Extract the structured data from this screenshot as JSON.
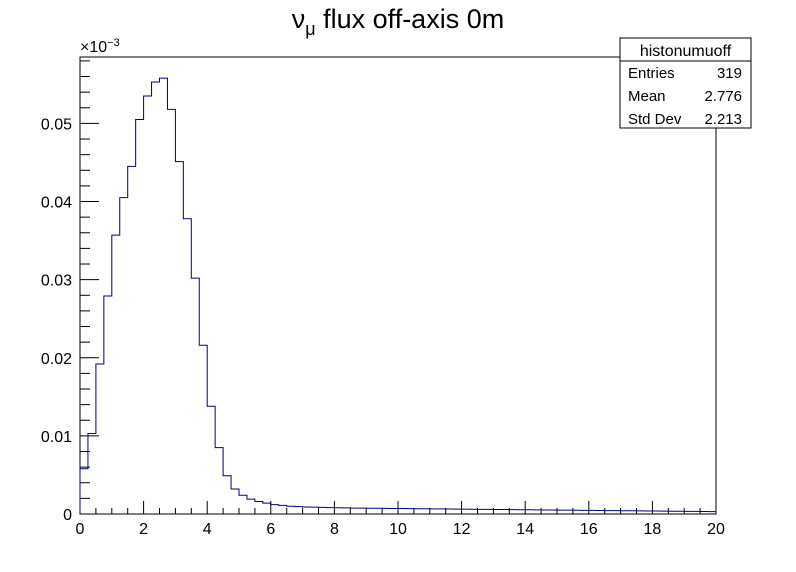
{
  "chart_data": {
    "type": "histogram",
    "title_main": "ν",
    "title_sub": "μ",
    "title_rest": " flux off-axis 0m",
    "xlim": [
      0,
      20
    ],
    "ylim": [
      0,
      0.0585
    ],
    "x_ticks": [
      0,
      2,
      4,
      6,
      8,
      10,
      12,
      14,
      16,
      18,
      20
    ],
    "x_tick_labels": [
      "0",
      "2",
      "4",
      "6",
      "8",
      "10",
      "12",
      "14",
      "16",
      "18",
      "20"
    ],
    "y_ticks": [
      0,
      0.01,
      0.02,
      0.03,
      0.04,
      0.05
    ],
    "y_tick_labels": [
      "0",
      "0.01",
      "0.02",
      "0.03",
      "0.04",
      "0.05"
    ],
    "y_multiplier_base": "×10",
    "y_multiplier_exp": "−3",
    "bin_width": 0.25,
    "values": [
      0.0058,
      0.0103,
      0.0192,
      0.0279,
      0.0357,
      0.0405,
      0.0445,
      0.0505,
      0.0535,
      0.0553,
      0.0558,
      0.0518,
      0.0451,
      0.0378,
      0.0302,
      0.0216,
      0.0138,
      0.0085,
      0.0049,
      0.0032,
      0.0024,
      0.0019,
      0.0016,
      0.0014,
      0.0012,
      0.0011,
      0.001,
      0.00095,
      0.0009,
      0.00088,
      0.00085,
      0.00082,
      0.0008,
      0.00078,
      0.00076,
      0.00075,
      0.00074,
      0.00073,
      0.00072,
      0.00071,
      0.0007,
      0.00069,
      0.00068,
      0.00067,
      0.00066,
      0.00065,
      0.00064,
      0.00063,
      0.00062,
      0.00061,
      0.0006,
      0.00059,
      0.00058,
      0.00057,
      0.00056,
      0.00055,
      0.00054,
      0.00053,
      0.00052,
      0.00051,
      0.0005,
      0.00049,
      0.00048,
      0.00047,
      0.00046,
      0.00045,
      0.00044,
      0.00043,
      0.00042,
      0.00041,
      0.0004,
      0.00039,
      0.00038,
      0.00037,
      0.00036,
      0.00035,
      0.00034,
      0.00033,
      0.00032,
      0.00031
    ],
    "line_color": "#000080",
    "stats": {
      "name": "histonumuoff",
      "rows": [
        {
          "label": "Entries",
          "value": "319"
        },
        {
          "label": "Mean",
          "value": "2.776"
        },
        {
          "label": "Std Dev",
          "value": "2.213"
        }
      ]
    }
  }
}
